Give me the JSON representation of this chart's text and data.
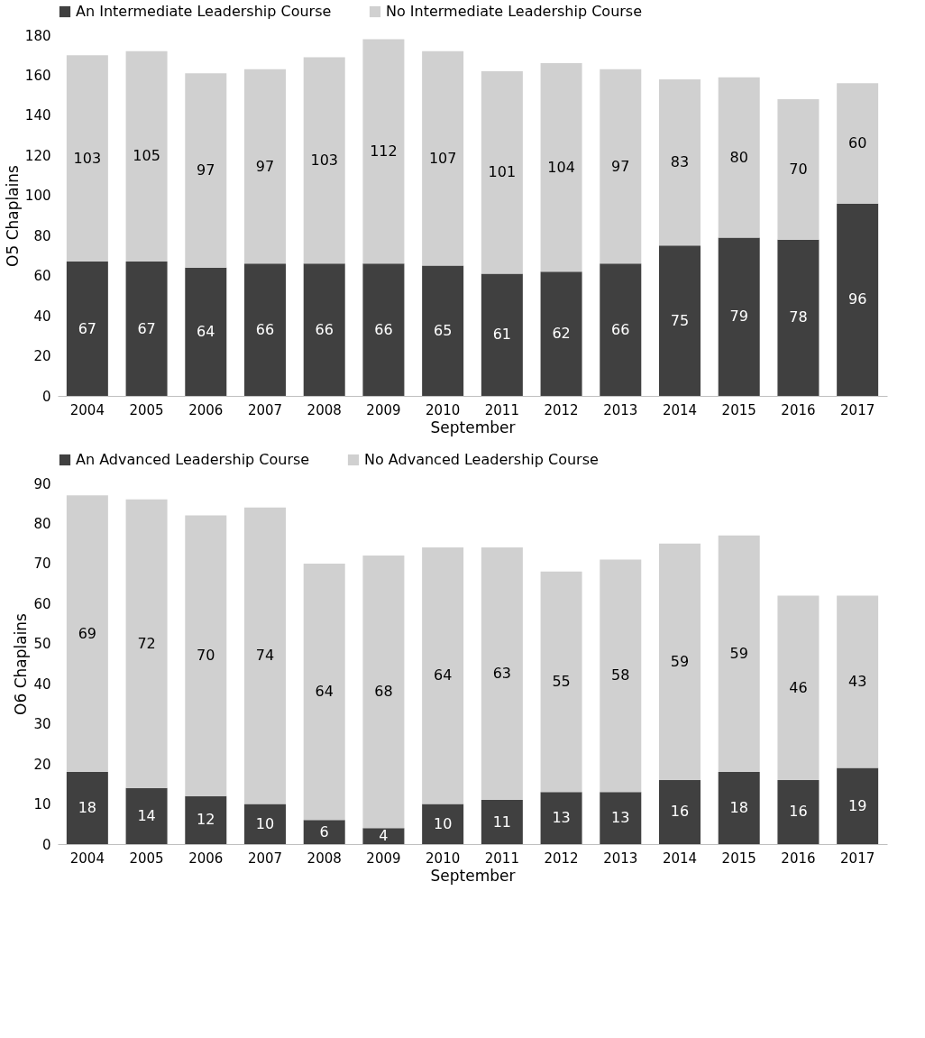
{
  "chart_data": [
    {
      "type": "bar",
      "stacked": true,
      "categories": [
        "2004",
        "2005",
        "2006",
        "2007",
        "2008",
        "2009",
        "2010",
        "2011",
        "2012",
        "2013",
        "2014",
        "2015",
        "2016",
        "2017"
      ],
      "xlabel": "September",
      "ylabel": "O5 Chaplains",
      "ylim": [
        0,
        180
      ],
      "yticks": [
        0,
        20,
        40,
        60,
        80,
        100,
        120,
        140,
        160,
        180
      ],
      "grid": false,
      "legend": "top",
      "data_labels": true,
      "series": [
        {
          "name": "An Intermediate Leadership Course",
          "color": "#404040",
          "values": [
            67,
            67,
            64,
            66,
            66,
            66,
            65,
            61,
            62,
            66,
            75,
            79,
            78,
            96
          ]
        },
        {
          "name": "No Intermediate Leadership Course",
          "color": "#d0d0d0",
          "values": [
            103,
            105,
            97,
            97,
            103,
            112,
            107,
            101,
            104,
            97,
            83,
            80,
            70,
            60
          ]
        }
      ]
    },
    {
      "type": "bar",
      "stacked": true,
      "categories": [
        "2004",
        "2005",
        "2006",
        "2007",
        "2008",
        "2009",
        "2010",
        "2011",
        "2012",
        "2013",
        "2014",
        "2015",
        "2016",
        "2017"
      ],
      "xlabel": "September",
      "ylabel": "O6 Chaplains",
      "ylim": [
        0,
        90
      ],
      "yticks": [
        0,
        10,
        20,
        30,
        40,
        50,
        60,
        70,
        80,
        90
      ],
      "grid": false,
      "legend": "top",
      "data_labels": true,
      "series": [
        {
          "name": "An Advanced Leadership Course",
          "color": "#404040",
          "values": [
            18,
            14,
            12,
            10,
            6,
            4,
            10,
            11,
            13,
            13,
            16,
            18,
            16,
            19
          ]
        },
        {
          "name": "No Advanced Leadership Course",
          "color": "#d0d0d0",
          "values": [
            69,
            72,
            70,
            74,
            64,
            68,
            64,
            63,
            55,
            58,
            59,
            59,
            46,
            43
          ]
        }
      ]
    }
  ]
}
